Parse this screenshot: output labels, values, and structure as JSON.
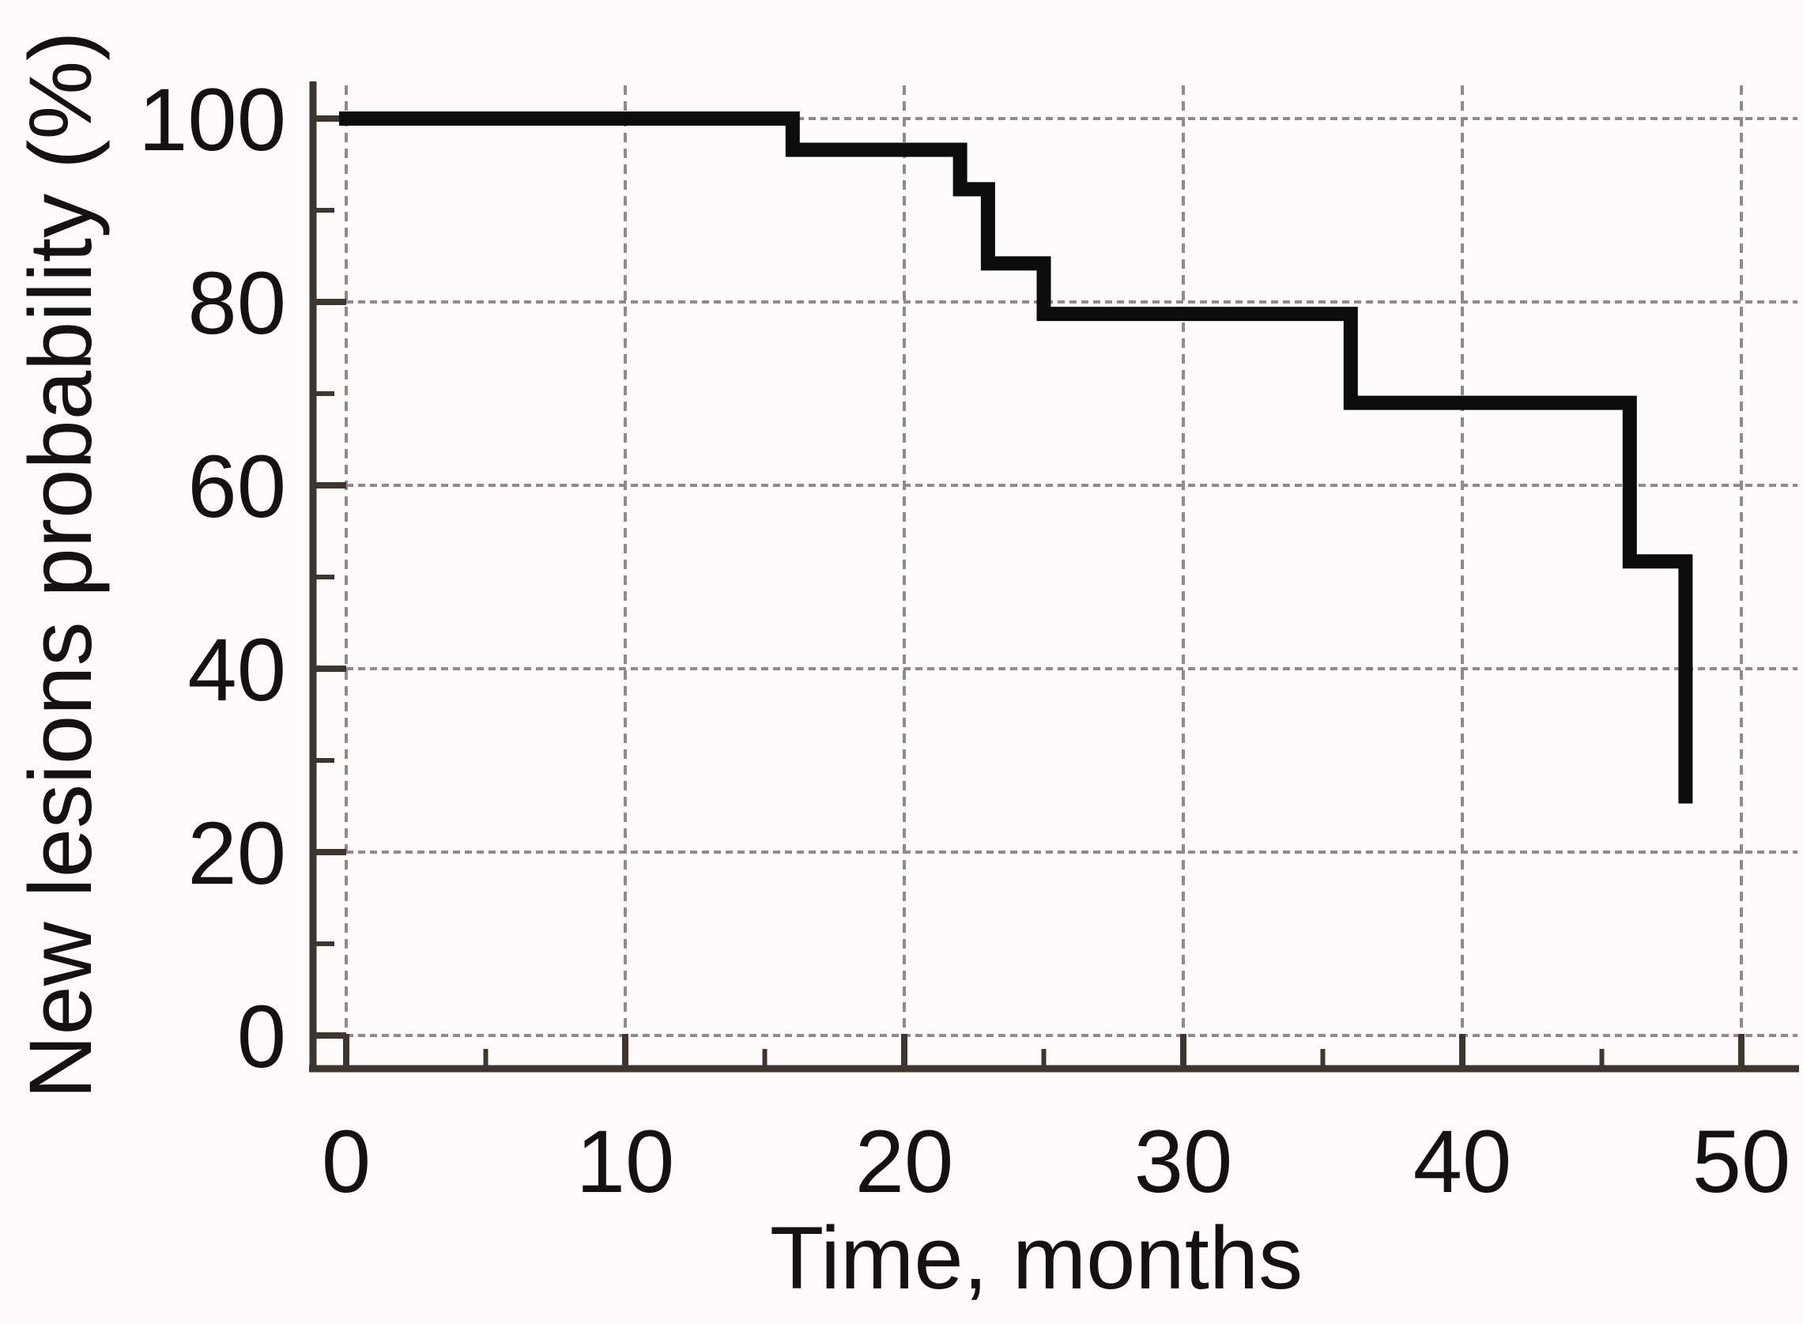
{
  "chart_data": {
    "type": "line",
    "subtype": "kaplan-meier-step",
    "title": "",
    "xlabel": "Time, months",
    "ylabel": "New lesions probability (%)",
    "xlim": [
      0,
      50
    ],
    "ylim": [
      0,
      100
    ],
    "x_ticks_major": [
      0,
      10,
      20,
      30,
      40,
      50
    ],
    "x_ticks_minor": [
      5,
      15,
      25,
      35,
      45
    ],
    "y_ticks_major": [
      0,
      20,
      40,
      60,
      80,
      100
    ],
    "y_ticks_minor": [
      10,
      30,
      50,
      70,
      90
    ],
    "grid": "dashed gridlines at major ticks, on",
    "legend_position": "none",
    "series": [
      {
        "name": "New lesions probability",
        "step": "post",
        "points": [
          {
            "x": 0,
            "y": 100
          },
          {
            "x": 16,
            "y": 96.6
          },
          {
            "x": 22,
            "y": 92.3
          },
          {
            "x": 23,
            "y": 84.2
          },
          {
            "x": 25,
            "y": 78.7
          },
          {
            "x": 36,
            "y": 69.0
          },
          {
            "x": 46,
            "y": 51.7
          },
          {
            "x": 48,
            "y": 25.3
          }
        ]
      }
    ],
    "colors": {
      "curve": "#0c0c0c",
      "grid": "#95888a",
      "axis": "#3e352f",
      "text": "#141110",
      "background": "#fdfcfa"
    }
  }
}
